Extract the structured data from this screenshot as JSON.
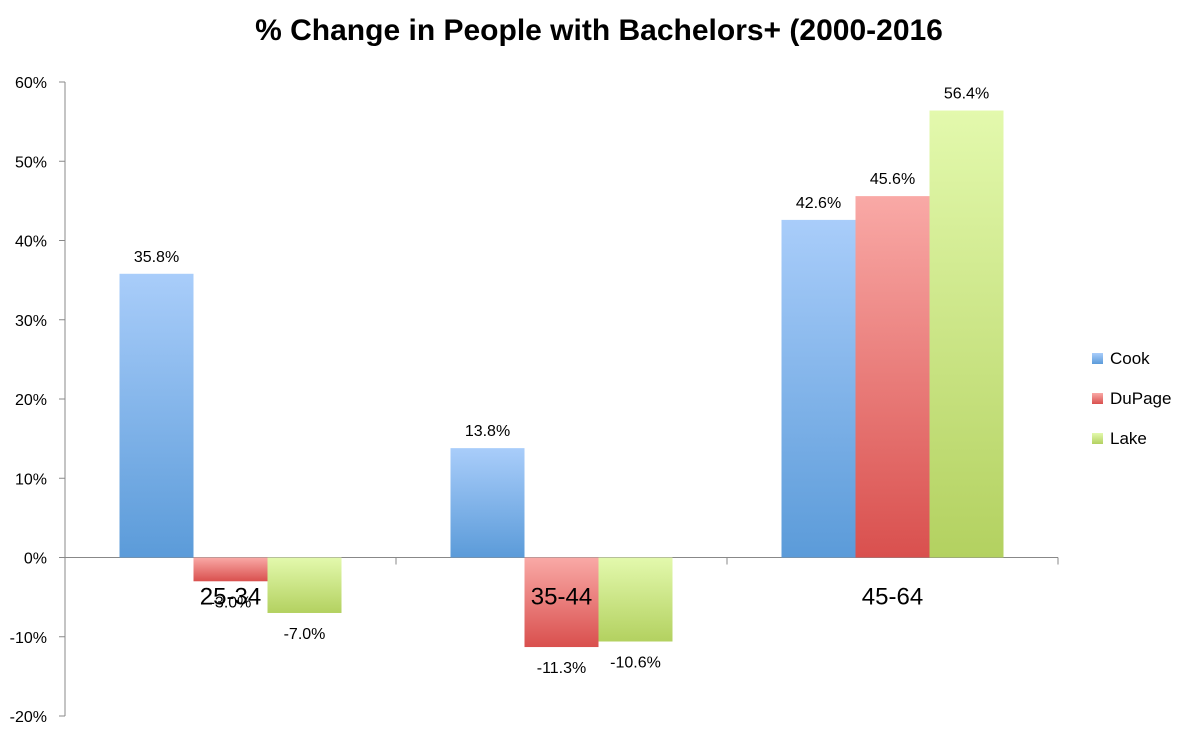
{
  "chart_data": {
    "type": "bar",
    "title": "% Change in People with Bachelors+ (2000-2016",
    "categories": [
      "25-34",
      "35-44",
      "45-64"
    ],
    "series": [
      {
        "name": "Cook",
        "values": [
          35.8,
          13.8,
          42.6
        ],
        "labels": [
          "35.8%",
          "13.8%",
          "42.6%"
        ],
        "color_top": "#a9cdfa",
        "color_bottom": "#5b9bd9"
      },
      {
        "name": "DuPage",
        "values": [
          -3.0,
          -11.3,
          45.6
        ],
        "labels": [
          "-3.0%",
          "-11.3%",
          "45.6%"
        ],
        "color_top": "#f9a9a6",
        "color_bottom": "#d9504e"
      },
      {
        "name": "Lake",
        "values": [
          -7.0,
          -10.6,
          56.4
        ],
        "labels": [
          "-7.0%",
          "-10.6%",
          "56.4%"
        ],
        "color_top": "#e3f9ad",
        "color_bottom": "#b3d160"
      }
    ],
    "ylim": [
      -20,
      60
    ],
    "yticks": [
      60,
      50,
      40,
      30,
      20,
      10,
      0,
      -10,
      -20
    ],
    "ytick_labels": [
      "60%",
      "50%",
      "40%",
      "30%",
      "20%",
      "10%",
      "0%",
      "-10%",
      "-20%"
    ],
    "xlabel": "",
    "ylabel": "",
    "legend_position": "right",
    "grid": false
  }
}
